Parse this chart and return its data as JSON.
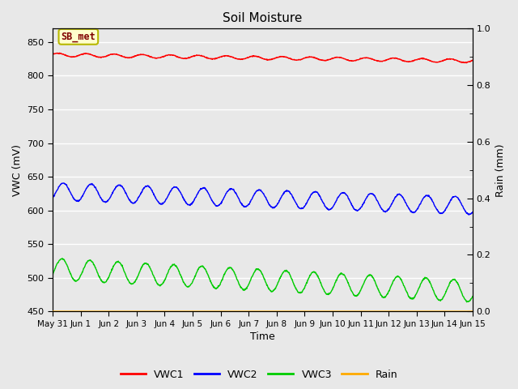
{
  "title": "Soil Moisture",
  "xlabel": "Time",
  "ylabel_left": "VWC (mV)",
  "ylabel_right": "Rain (mm)",
  "ylim_left": [
    450,
    870
  ],
  "ylim_right": [
    0.0,
    1.0
  ],
  "yticks_left": [
    450,
    500,
    550,
    600,
    650,
    700,
    750,
    800,
    850
  ],
  "yticks_right": [
    0.0,
    0.2,
    0.4,
    0.6,
    0.8,
    1.0
  ],
  "xtick_labels": [
    "May 31",
    "Jun 1",
    "Jun 2",
    "Jun 3",
    "Jun 4",
    "Jun 5",
    "Jun 6",
    "Jun 7",
    "Jun 8",
    "Jun 9",
    "Jun 10",
    "Jun 11",
    "Jun 12",
    "Jun 13",
    "Jun 14",
    "Jun 15"
  ],
  "annotation_text": "SB_met",
  "annotation_box_color": "#ffffcc",
  "annotation_border_color": "#b8b800",
  "annotation_text_color": "#800000",
  "bg_color": "#e8e8e8",
  "plot_bg_color": "#e8e8e8",
  "grid_color": "#ffffff",
  "colors": {
    "VWC1": "#ff0000",
    "VWC2": "#0000ff",
    "VWC3": "#00cc00",
    "Rain": "#ffaa00"
  },
  "legend_entries": [
    "VWC1",
    "VWC2",
    "VWC3",
    "Rain"
  ],
  "fig_width": 6.4,
  "fig_height": 4.8,
  "dpi": 100
}
